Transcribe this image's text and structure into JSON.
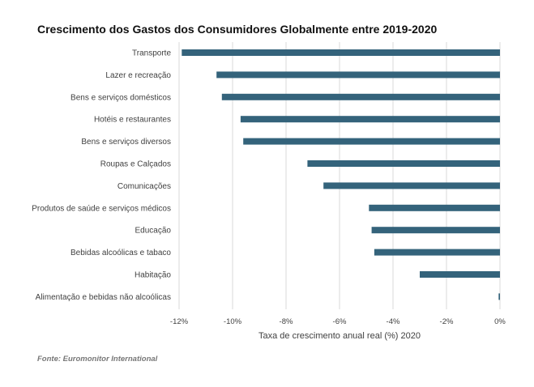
{
  "title": "Crescimento dos Gastos dos Consumidores Globalmente entre 2019-2020",
  "source": "Fonte: Euromonitor International",
  "colors": {
    "bar": "#34637b",
    "grid": "#d9d9d9",
    "text": "#404040"
  },
  "chart_data": {
    "type": "bar",
    "orientation": "horizontal",
    "categories": [
      "Transporte",
      "Lazer e recreação",
      "Bens e serviços domésticos",
      "Hotéis e restaurantes",
      "Bens e serviços diversos",
      "Roupas e Calçados",
      "Comunicações",
      "Produtos de saúde e serviços médicos",
      "Educação",
      "Bebidas alcoólicas e tabaco",
      "Habitação",
      "Alimentação e bebidas não alcoólicas"
    ],
    "values": [
      -11.9,
      -10.6,
      -10.4,
      -9.7,
      -9.6,
      -7.2,
      -6.6,
      -4.9,
      -4.8,
      -4.7,
      -3.0,
      -0.05
    ],
    "xlabel": "Taxa de crescimento anual real (%) 2020",
    "ylabel": "",
    "xlim": [
      -12,
      0
    ],
    "x_ticks": [
      -12,
      -10,
      -8,
      -6,
      -4,
      -2,
      0
    ],
    "x_tick_labels": [
      "-12%",
      "-10%",
      "-8%",
      "-6%",
      "-4%",
      "-2%",
      "0%"
    ],
    "grid": "vertical",
    "legend": "none"
  }
}
